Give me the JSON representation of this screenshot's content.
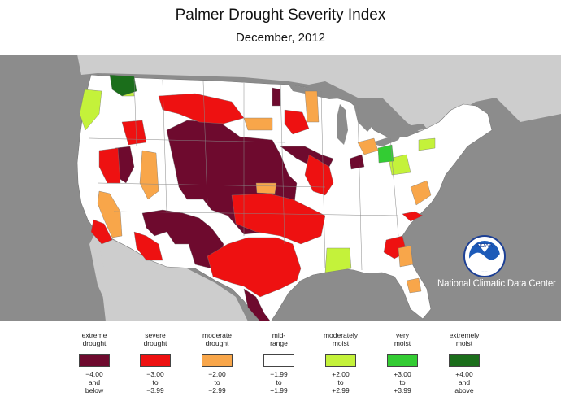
{
  "title": "Palmer Drought Severity Index",
  "subtitle": "December, 2012",
  "logo": {
    "label": "NOAA",
    "agency": "National Climatic Data Center"
  },
  "colors": {
    "ocean": "#8c8c8c",
    "land_outside": "#cdcdcd",
    "lakes": "#8c8c8c",
    "us_land": "#ffffff",
    "extreme": "#6e0a2e",
    "severe": "#ee1111",
    "moderate": "#f8a64a",
    "near_normal": "#ffffff",
    "moderately_moist": "#c4f23a",
    "very_moist": "#33cc33",
    "extremely_moist": "#1b6e1b"
  },
  "legend": [
    {
      "name_line1": "extreme",
      "name_line2": "drought",
      "range_line1": "−4.00",
      "range_line2": "and",
      "range_line3": "below",
      "color": "#6e0a2e"
    },
    {
      "name_line1": "severe",
      "name_line2": "drought",
      "range_line1": "−3.00",
      "range_line2": "to",
      "range_line3": "−3.99",
      "color": "#ee1111"
    },
    {
      "name_line1": "moderate",
      "name_line2": "drought",
      "range_line1": "−2.00",
      "range_line2": "to",
      "range_line3": "−2.99",
      "color": "#f8a64a"
    },
    {
      "name_line1": "mid-",
      "name_line2": "range",
      "range_line1": "−1.99",
      "range_line2": "to",
      "range_line3": "+1.99",
      "color": "#ffffff"
    },
    {
      "name_line1": "moderately",
      "name_line2": "moist",
      "range_line1": "+2.00",
      "range_line2": "to",
      "range_line3": "+2.99",
      "color": "#c4f23a"
    },
    {
      "name_line1": "very",
      "name_line2": "moist",
      "range_line1": "+3.00",
      "range_line2": "to",
      "range_line3": "+3.99",
      "color": "#33cc33"
    },
    {
      "name_line1": "extremely",
      "name_line2": "moist",
      "range_line1": "+4.00",
      "range_line2": "and",
      "range_line3": "above",
      "color": "#1b6e1b"
    }
  ]
}
